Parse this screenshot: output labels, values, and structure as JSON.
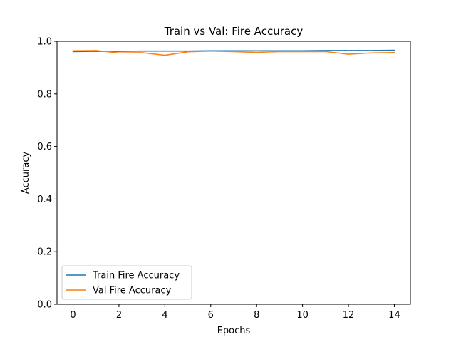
{
  "chart_data": {
    "type": "line",
    "title": "Train vs Val: Fire Accuracy",
    "xlabel": "Epochs",
    "ylabel": "Accuracy",
    "xlim": [
      -0.7,
      14.7
    ],
    "ylim": [
      0,
      1.0
    ],
    "xticks": [
      0,
      2,
      4,
      6,
      8,
      10,
      12,
      14
    ],
    "xtick_labels": [
      "0",
      "2",
      "4",
      "6",
      "8",
      "10",
      "12",
      "14"
    ],
    "yticks": [
      0.0,
      0.2,
      0.4,
      0.6,
      0.8,
      1.0
    ],
    "ytick_labels": [
      "0.0",
      "0.2",
      "0.4",
      "0.6",
      "0.8",
      "1.0"
    ],
    "grid": false,
    "legend_position": "lower-left",
    "x": [
      0,
      1,
      2,
      3,
      4,
      5,
      6,
      7,
      8,
      9,
      10,
      11,
      12,
      13,
      14
    ],
    "series": [
      {
        "name": "Train Fire Accuracy",
        "color": "#1f77b4",
        "values": [
          0.961,
          0.962,
          0.962,
          0.963,
          0.963,
          0.963,
          0.964,
          0.964,
          0.964,
          0.964,
          0.964,
          0.965,
          0.965,
          0.965,
          0.966
        ]
      },
      {
        "name": "Val Fire Accuracy",
        "color": "#ff7f0e",
        "values": [
          0.964,
          0.965,
          0.956,
          0.957,
          0.947,
          0.96,
          0.963,
          0.961,
          0.958,
          0.961,
          0.961,
          0.961,
          0.951,
          0.956,
          0.957
        ]
      }
    ]
  }
}
